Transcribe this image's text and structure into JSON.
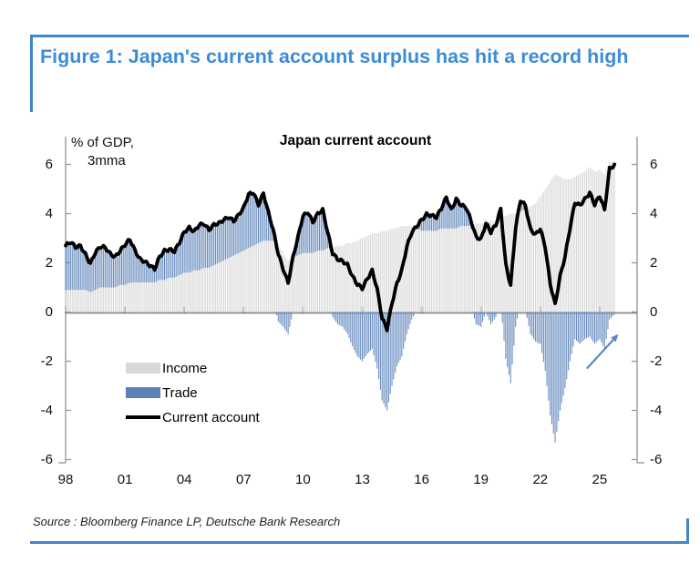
{
  "figure": {
    "title": "Figure 1: Japan's current account surplus has hit a record high",
    "source": "Source : Bloomberg Finance LP, Deutsche Bank Research"
  },
  "chart": {
    "title": "Japan current account",
    "unit_label_line1": "% of GDP,",
    "unit_label_line2": "3mma",
    "legend": [
      {
        "label": "Income",
        "color": "#d9d9d9",
        "type": "bar"
      },
      {
        "label": "Trade",
        "color": "#5b81b6",
        "type": "bar"
      },
      {
        "label": "Current account",
        "color": "#000000",
        "type": "line"
      }
    ],
    "arrow": {
      "year1": 2024.35,
      "value1": -2.3,
      "year2": 2025.95,
      "value2": -0.9
    }
  },
  "colors": {
    "accent_blue": "#3a8cd8",
    "border_blue": "#3f87cd",
    "income_bar": "#d9d9d9",
    "trade_bar": "#6389bd",
    "current_account_line": "#000000",
    "axis": "#999999",
    "zero_line": "#8a8a8a",
    "arrow": "#5b87c8"
  },
  "chart_data": {
    "type": "bar",
    "subtype": "stacked-bars-with-line",
    "title": "Japan current account",
    "ylabel": "% of GDP, 3mma",
    "ylim": [
      -6,
      6
    ],
    "yticks": [
      6,
      4,
      2,
      0,
      -2,
      -4,
      -6
    ],
    "x_tick_years": [
      1998,
      2001,
      2004,
      2007,
      2010,
      2013,
      2016,
      2019,
      2022,
      2025
    ],
    "x_tick_labels": [
      "98",
      "01",
      "04",
      "07",
      "10",
      "13",
      "16",
      "19",
      "22",
      "25"
    ],
    "grid": false,
    "legend_position": "inside-lower-left",
    "x_start": 1998.0,
    "x_step": 0.25,
    "x_end": 2025.75,
    "series": [
      {
        "name": "Income",
        "type": "bar",
        "values": [
          0.9,
          0.9,
          0.9,
          0.9,
          0.9,
          0.8,
          0.9,
          1.0,
          1.0,
          1.0,
          1.0,
          1.1,
          1.1,
          1.2,
          1.2,
          1.2,
          1.2,
          1.2,
          1.2,
          1.3,
          1.3,
          1.4,
          1.4,
          1.5,
          1.6,
          1.6,
          1.7,
          1.7,
          1.8,
          1.8,
          1.9,
          2.0,
          2.1,
          2.2,
          2.3,
          2.4,
          2.5,
          2.6,
          2.7,
          2.8,
          2.9,
          2.9,
          2.9,
          2.8,
          2.4,
          2.1,
          2.2,
          2.3,
          2.4,
          2.4,
          2.4,
          2.5,
          2.5,
          2.6,
          2.6,
          2.7,
          2.7,
          2.8,
          2.8,
          2.9,
          3.0,
          3.1,
          3.2,
          3.2,
          3.3,
          3.3,
          3.4,
          3.4,
          3.5,
          3.5,
          3.5,
          3.4,
          3.3,
          3.3,
          3.3,
          3.3,
          3.4,
          3.4,
          3.4,
          3.4,
          3.5,
          3.5,
          3.5,
          3.6,
          3.6,
          3.6,
          3.7,
          3.7,
          3.9,
          3.9,
          4.0,
          4.0,
          4.1,
          4.2,
          4.3,
          4.4,
          4.7,
          5.0,
          5.3,
          5.6,
          5.5,
          5.4,
          5.4,
          5.5,
          5.6,
          5.7,
          5.9,
          5.7,
          5.8,
          5.6,
          6.1,
          6.1
        ]
      },
      {
        "name": "Trade",
        "type": "bar",
        "values": [
          1.8,
          1.9,
          1.7,
          1.8,
          1.5,
          1.2,
          1.5,
          1.6,
          1.6,
          1.4,
          1.3,
          1.4,
          1.6,
          1.7,
          1.3,
          1.0,
          0.9,
          0.7,
          0.5,
          0.9,
          1.2,
          1.2,
          1.1,
          1.3,
          1.6,
          1.8,
          1.6,
          1.9,
          1.8,
          1.5,
          1.6,
          1.6,
          1.7,
          1.7,
          1.4,
          1.5,
          1.7,
          2.2,
          2.2,
          1.6,
          1.9,
          1.1,
          0.4,
          -0.4,
          -0.6,
          -0.9,
          0.0,
          0.7,
          1.5,
          1.7,
          1.3,
          1.5,
          1.6,
          0.6,
          -0.2,
          -0.5,
          -0.6,
          -0.9,
          -1.4,
          -1.8,
          -2.0,
          -1.7,
          -1.5,
          -2.3,
          -3.6,
          -4.0,
          -3.0,
          -2.2,
          -1.8,
          -0.9,
          -0.3,
          0.1,
          0.5,
          0.7,
          0.6,
          0.5,
          0.8,
          1.3,
          0.8,
          1.2,
          0.8,
          0.7,
          0.2,
          -0.5,
          -0.6,
          0.0,
          -0.5,
          -0.2,
          0.3,
          -1.9,
          -2.9,
          -0.6,
          0.4,
          0.1,
          -0.9,
          -1.2,
          -1.3,
          -2.4,
          -4.2,
          -5.3,
          -4.0,
          -3.1,
          -2.0,
          -1.1,
          -1.3,
          -1.1,
          -1.0,
          -1.3,
          -1.1,
          -1.5,
          -0.3,
          -0.1
        ]
      },
      {
        "name": "Current account",
        "type": "line",
        "values": [
          2.7,
          2.8,
          2.6,
          2.7,
          2.4,
          2.0,
          2.4,
          2.6,
          2.6,
          2.4,
          2.3,
          2.5,
          2.7,
          2.9,
          2.5,
          2.2,
          2.1,
          1.9,
          1.7,
          2.2,
          2.5,
          2.6,
          2.5,
          2.8,
          3.2,
          3.4,
          3.3,
          3.6,
          3.6,
          3.3,
          3.5,
          3.6,
          3.8,
          3.9,
          3.7,
          3.9,
          4.2,
          4.8,
          4.9,
          4.4,
          4.8,
          4.0,
          3.3,
          2.4,
          1.8,
          1.2,
          2.2,
          3.0,
          3.9,
          4.1,
          3.7,
          4.0,
          4.1,
          3.2,
          2.4,
          2.2,
          2.1,
          1.9,
          1.4,
          1.1,
          1.0,
          1.4,
          1.7,
          0.9,
          -0.3,
          -0.7,
          0.4,
          1.2,
          1.7,
          2.6,
          3.2,
          3.5,
          3.8,
          4.0,
          3.9,
          3.8,
          4.2,
          4.7,
          4.2,
          4.6,
          4.3,
          4.2,
          3.7,
          3.1,
          3.0,
          3.6,
          3.2,
          3.5,
          4.2,
          2.0,
          1.1,
          3.4,
          4.5,
          4.3,
          3.4,
          3.2,
          3.4,
          2.6,
          1.1,
          0.3,
          1.5,
          2.3,
          3.4,
          4.4,
          4.3,
          4.6,
          4.9,
          4.4,
          4.7,
          4.1,
          5.8,
          6.0
        ]
      }
    ]
  }
}
